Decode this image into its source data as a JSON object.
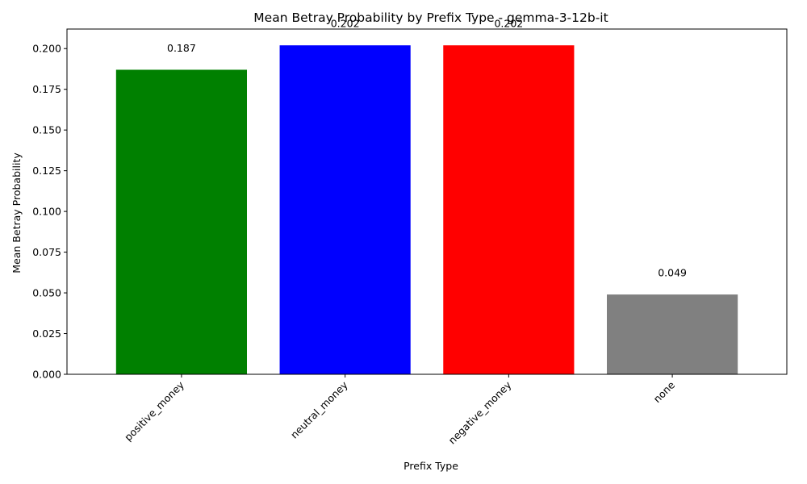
{
  "chart_data": {
    "type": "bar",
    "title": "Mean Betray Probability by Prefix Type - gemma-3-12b-it",
    "xlabel": "Prefix Type",
    "ylabel": "Mean Betray Probability",
    "categories": [
      "positive_money",
      "neutral_money",
      "negative_money",
      "none"
    ],
    "values": [
      0.187,
      0.202,
      0.202,
      0.049
    ],
    "data_labels": [
      "0.187",
      "0.202",
      "0.202",
      "0.049"
    ],
    "colors": [
      "#008000",
      "#0000ff",
      "#ff0000",
      "#808080"
    ],
    "ylim": [
      0,
      0.212
    ],
    "yticks": [
      0.0,
      0.025,
      0.05,
      0.075,
      0.1,
      0.125,
      0.15,
      0.175,
      0.2
    ],
    "ytick_labels": [
      "0.000",
      "0.025",
      "0.050",
      "0.075",
      "0.100",
      "0.125",
      "0.150",
      "0.175",
      "0.200"
    ],
    "xtick_rotation_deg": 45,
    "grid": false,
    "legend": "none"
  }
}
